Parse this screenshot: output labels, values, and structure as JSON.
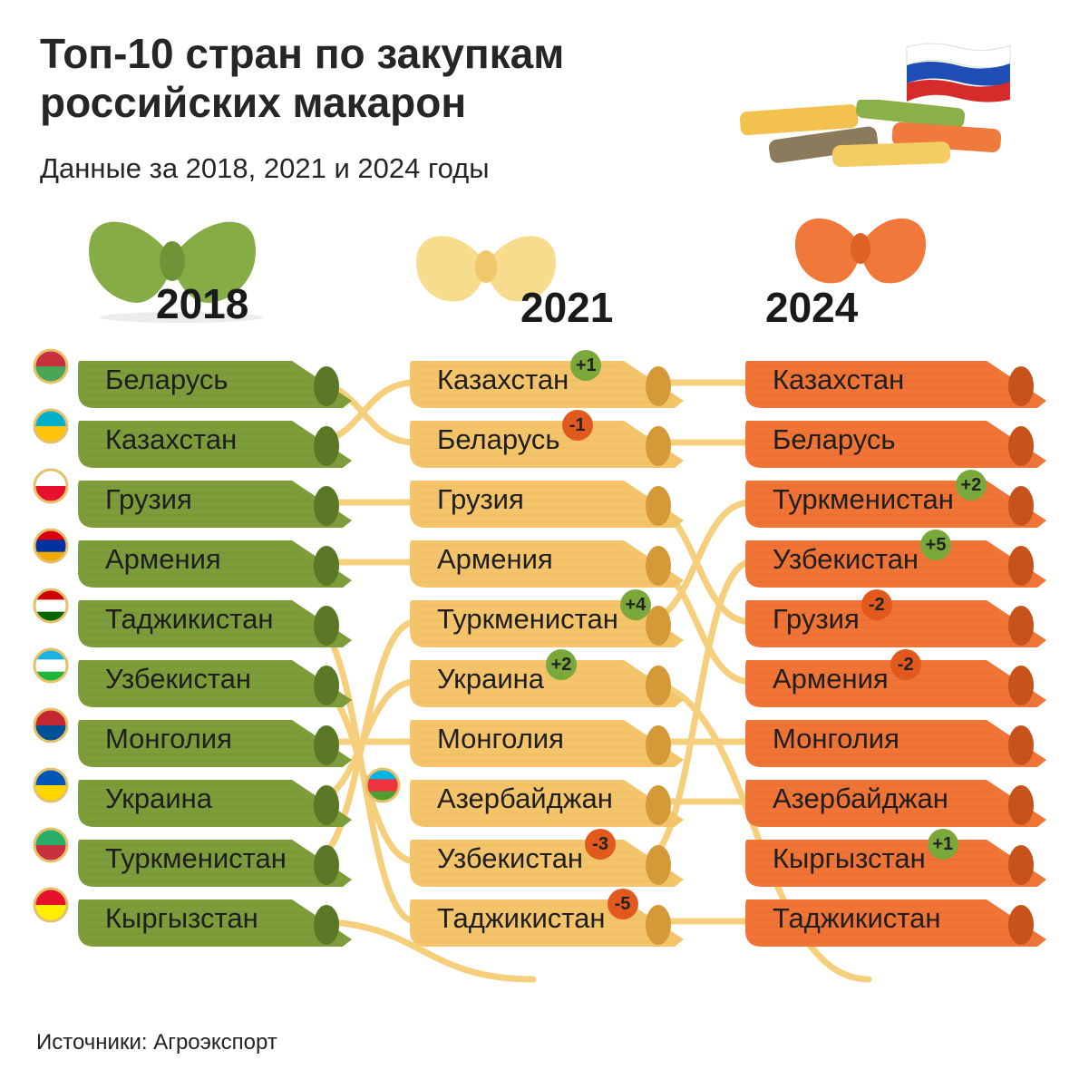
{
  "title": "Топ-10 стран по закупкам российских макарон",
  "subtitle": "Данные за 2018, 2021 и 2024 годы",
  "source": "Источники: Агроэкспорт",
  "colors": {
    "green": "#7d9c3a",
    "yellow": "#f4c46a",
    "orange": "#f07436",
    "up_badge": "#7aa83a",
    "down_badge": "#e2591e",
    "connector": "#f6cf7c"
  },
  "columns": [
    {
      "year": "2018",
      "color": "green",
      "rows": [
        {
          "country": "Беларусь",
          "change": "",
          "flag": "belarus-flag-icon"
        },
        {
          "country": "Казахстан",
          "change": "",
          "flag": "kazakhstan-flag-icon"
        },
        {
          "country": "Грузия",
          "change": "",
          "flag": "georgia-flag-icon"
        },
        {
          "country": "Армения",
          "change": "",
          "flag": "armenia-flag-icon"
        },
        {
          "country": "Таджикистан",
          "change": "",
          "flag": "tajikistan-flag-icon"
        },
        {
          "country": "Узбекистан",
          "change": "",
          "flag": "uzbekistan-flag-icon"
        },
        {
          "country": "Монголия",
          "change": "",
          "flag": "mongolia-flag-icon"
        },
        {
          "country": "Украина",
          "change": "",
          "flag": "ukraine-flag-icon"
        },
        {
          "country": "Туркменистан",
          "change": "",
          "flag": "turkmenistan-flag-icon"
        },
        {
          "country": "Кыргызстан",
          "change": "",
          "flag": "kyrgyzstan-flag-icon"
        }
      ]
    },
    {
      "year": "2021",
      "color": "yellow",
      "rows": [
        {
          "country": "Казахстан",
          "change": "+1"
        },
        {
          "country": "Беларусь",
          "change": "-1"
        },
        {
          "country": "Грузия",
          "change": ""
        },
        {
          "country": "Армения",
          "change": ""
        },
        {
          "country": "Туркменистан",
          "change": "+4"
        },
        {
          "country": "Украина",
          "change": "+2"
        },
        {
          "country": "Монголия",
          "change": ""
        },
        {
          "country": "Азербайджан",
          "change": "",
          "flag": "azerbaijan-flag-icon"
        },
        {
          "country": "Узбекистан",
          "change": "-3"
        },
        {
          "country": "Таджикистан",
          "change": "-5"
        }
      ]
    },
    {
      "year": "2024",
      "color": "orange",
      "rows": [
        {
          "country": "Казахстан",
          "change": ""
        },
        {
          "country": "Беларусь",
          "change": ""
        },
        {
          "country": "Туркменистан",
          "change": "+2"
        },
        {
          "country": "Узбекистан",
          "change": "+5"
        },
        {
          "country": "Грузия",
          "change": "-2"
        },
        {
          "country": "Армения",
          "change": "-2"
        },
        {
          "country": "Монголия",
          "change": ""
        },
        {
          "country": "Азербайджан",
          "change": ""
        },
        {
          "country": "Кыргызстан",
          "change": "+1"
        },
        {
          "country": "Таджикистан",
          "change": ""
        }
      ]
    }
  ]
}
